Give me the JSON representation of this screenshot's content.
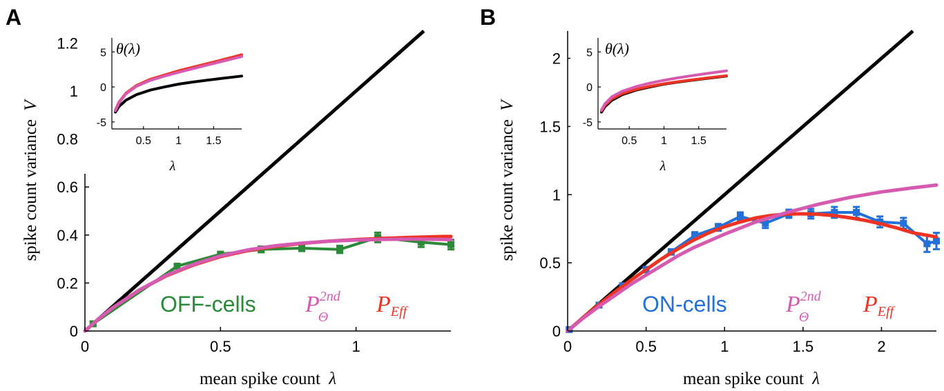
{
  "chart_data": [
    {
      "panel": "A",
      "type": "line",
      "xlabel": "mean spike count",
      "xlabel_symbol": "λ",
      "ylabel": "spike count variance",
      "ylabel_symbol": "V",
      "xlim": [
        0,
        1.35
      ],
      "ylim": [
        0,
        1.25
      ],
      "xticks": [
        0,
        0.5,
        1
      ],
      "xtick_labels": [
        "0",
        "0.5",
        "1"
      ],
      "yticks": [
        0,
        0.2,
        0.4,
        0.6,
        0.8,
        1,
        1.2
      ],
      "ytick_labels": [
        "0",
        "0.2",
        "0.4",
        "0.6",
        "0.8",
        "1",
        "1.2"
      ],
      "labels": {
        "cells": "OFF-cells",
        "model_2nd": "P",
        "model_2nd_sub": "Θ",
        "model_2nd_sup": "2nd",
        "model_eff": "P",
        "model_eff_sub": "Eff"
      },
      "colors": {
        "cells": "#2a8a38",
        "model_2nd": "#d65bb0",
        "model_eff": "#ee3322",
        "poisson": "#000000"
      },
      "series": [
        {
          "role": "poisson",
          "x": [
            0,
            1.25
          ],
          "y": [
            0,
            1.25
          ]
        },
        {
          "role": "data",
          "x": [
            0.03,
            0.34,
            0.5,
            0.65,
            0.8,
            0.94,
            1.08,
            1.24,
            1.35
          ],
          "y": [
            0.03,
            0.27,
            0.32,
            0.34,
            0.345,
            0.34,
            0.39,
            0.37,
            0.36
          ],
          "err": [
            0.01,
            0.01,
            0.01,
            0.012,
            0.012,
            0.015,
            0.02,
            0.02,
            0.02
          ]
        },
        {
          "role": "model_eff",
          "x": [
            0,
            0.05,
            0.1,
            0.2,
            0.3,
            0.4,
            0.5,
            0.6,
            0.7,
            0.8,
            0.9,
            1.0,
            1.1,
            1.2,
            1.3,
            1.35
          ],
          "y": [
            0,
            0.05,
            0.095,
            0.17,
            0.23,
            0.275,
            0.31,
            0.335,
            0.352,
            0.365,
            0.374,
            0.381,
            0.386,
            0.39,
            0.393,
            0.394
          ]
        },
        {
          "role": "model_2nd",
          "x": [
            0,
            0.05,
            0.1,
            0.2,
            0.3,
            0.4,
            0.5,
            0.6,
            0.7,
            0.8,
            0.9,
            1.0,
            1.1,
            1.2,
            1.3,
            1.35
          ],
          "y": [
            0,
            0.05,
            0.095,
            0.17,
            0.232,
            0.278,
            0.313,
            0.338,
            0.355,
            0.366,
            0.374,
            0.379,
            0.382,
            0.383,
            0.382,
            0.381
          ]
        }
      ],
      "inset": {
        "title": "θ(λ)",
        "xlabel": "λ",
        "xlim": [
          0.05,
          1.9
        ],
        "ylim": [
          -6,
          7
        ],
        "xticks": [
          0.5,
          1,
          1.5
        ],
        "xtick_labels": [
          "0.5",
          "1",
          "1.5"
        ],
        "yticks": [
          -5,
          0,
          5
        ],
        "ytick_labels": [
          "-5",
          "0",
          "5"
        ],
        "series": [
          {
            "role": "poisson",
            "x": [
              0.1,
              0.15,
              0.25,
              0.4,
              0.6,
              0.8,
              1.0,
              1.2,
              1.4,
              1.6,
              1.9
            ],
            "y": [
              -3.6,
              -2.8,
              -1.9,
              -1.1,
              -0.45,
              0.0,
              0.4,
              0.7,
              0.95,
              1.2,
              1.55
            ]
          },
          {
            "role": "model_eff",
            "x": [
              0.1,
              0.15,
              0.25,
              0.4,
              0.6,
              0.8,
              1.0,
              1.2,
              1.4,
              1.6,
              1.9
            ],
            "y": [
              -3.3,
              -2.2,
              -0.9,
              0.2,
              1.1,
              1.7,
              2.3,
              2.8,
              3.3,
              3.8,
              4.6
            ]
          },
          {
            "role": "model_2nd",
            "x": [
              0.1,
              0.15,
              0.25,
              0.4,
              0.6,
              0.8,
              1.0,
              1.2,
              1.4,
              1.6,
              1.9
            ],
            "y": [
              -3.4,
              -2.3,
              -1.0,
              0.1,
              0.95,
              1.55,
              2.1,
              2.6,
              3.1,
              3.6,
              4.35
            ]
          }
        ]
      }
    },
    {
      "panel": "B",
      "type": "line",
      "xlabel": "mean spike count",
      "xlabel_symbol": "λ",
      "ylabel": "spike count variance",
      "ylabel_symbol": "V",
      "xlim": [
        0,
        2.35
      ],
      "ylim": [
        0,
        2.2
      ],
      "xticks": [
        0,
        0.5,
        1,
        1.5,
        2
      ],
      "xtick_labels": [
        "0",
        "0.5",
        "1",
        "1.5",
        "2"
      ],
      "yticks": [
        0,
        0.5,
        1,
        1.5,
        2
      ],
      "ytick_labels": [
        "0",
        "0.5",
        "1",
        "1.5",
        "2"
      ],
      "labels": {
        "cells": "ON-cells",
        "model_2nd": "P",
        "model_2nd_sub": "Θ",
        "model_2nd_sup": "2nd",
        "model_eff": "P",
        "model_eff_sub": "Eff"
      },
      "colors": {
        "cells": "#2270d8",
        "model_2nd": "#d65bb0",
        "model_eff": "#ee3322",
        "poisson": "#000000"
      },
      "series": [
        {
          "role": "poisson",
          "x": [
            0,
            2.2
          ],
          "y": [
            0,
            2.2
          ]
        },
        {
          "role": "data",
          "x": [
            0.01,
            0.2,
            0.35,
            0.5,
            0.66,
            0.81,
            0.96,
            1.1,
            1.26,
            1.41,
            1.55,
            1.7,
            1.84,
            1.99,
            2.14,
            2.29,
            2.35
          ],
          "y": [
            0.01,
            0.19,
            0.33,
            0.45,
            0.58,
            0.7,
            0.76,
            0.84,
            0.79,
            0.86,
            0.86,
            0.87,
            0.87,
            0.8,
            0.79,
            0.64,
            0.66
          ],
          "err": [
            0.01,
            0.015,
            0.02,
            0.02,
            0.02,
            0.025,
            0.025,
            0.03,
            0.035,
            0.03,
            0.035,
            0.04,
            0.04,
            0.04,
            0.04,
            0.06,
            0.06
          ]
        },
        {
          "role": "model_2nd",
          "x": [
            0,
            0.1,
            0.2,
            0.3,
            0.4,
            0.5,
            0.6,
            0.7,
            0.8,
            0.9,
            1.0,
            1.2,
            1.4,
            1.6,
            1.8,
            2.0,
            2.2,
            2.35
          ],
          "y": [
            0,
            0.095,
            0.18,
            0.26,
            0.34,
            0.41,
            0.48,
            0.55,
            0.61,
            0.66,
            0.71,
            0.8,
            0.87,
            0.93,
            0.98,
            1.02,
            1.05,
            1.07
          ]
        },
        {
          "role": "model_eff",
          "x": [
            0,
            0.1,
            0.2,
            0.3,
            0.4,
            0.5,
            0.6,
            0.7,
            0.8,
            0.9,
            1.0,
            1.1,
            1.2,
            1.3,
            1.4,
            1.5,
            1.6,
            1.7,
            1.8,
            1.9,
            2.0,
            2.1,
            2.2,
            2.35
          ],
          "y": [
            0,
            0.1,
            0.195,
            0.285,
            0.37,
            0.45,
            0.53,
            0.6,
            0.665,
            0.72,
            0.765,
            0.8,
            0.83,
            0.848,
            0.858,
            0.86,
            0.856,
            0.846,
            0.83,
            0.81,
            0.785,
            0.755,
            0.72,
            0.69
          ]
        }
      ],
      "inset": {
        "title": "θ(λ)",
        "xlabel": "λ",
        "xlim": [
          0.05,
          1.9
        ],
        "ylim": [
          -6,
          7
        ],
        "xticks": [
          0.5,
          1,
          1.5
        ],
        "xtick_labels": [
          "0.5",
          "1",
          "1.5"
        ],
        "yticks": [
          -5,
          0,
          5
        ],
        "ytick_labels": [
          "-5",
          "0",
          "5"
        ],
        "series": [
          {
            "role": "poisson",
            "x": [
              0.1,
              0.15,
              0.25,
              0.4,
              0.6,
              0.8,
              1.0,
              1.2,
              1.4,
              1.6,
              1.9
            ],
            "y": [
              -3.6,
              -2.8,
              -1.9,
              -1.1,
              -0.45,
              0.0,
              0.4,
              0.7,
              0.95,
              1.2,
              1.55
            ]
          },
          {
            "role": "model_eff",
            "x": [
              0.1,
              0.15,
              0.25,
              0.4,
              0.6,
              0.8,
              1.0,
              1.2,
              1.4,
              1.6,
              1.9
            ],
            "y": [
              -3.4,
              -2.6,
              -1.7,
              -0.95,
              -0.35,
              0.1,
              0.45,
              0.75,
              1.0,
              1.25,
              1.6
            ]
          },
          {
            "role": "model_2nd",
            "x": [
              0.1,
              0.15,
              0.25,
              0.4,
              0.6,
              0.8,
              1.0,
              1.2,
              1.4,
              1.6,
              1.9
            ],
            "y": [
              -3.3,
              -2.4,
              -1.4,
              -0.6,
              0.05,
              0.55,
              0.95,
              1.3,
              1.6,
              1.9,
              2.3
            ]
          }
        ]
      }
    }
  ]
}
